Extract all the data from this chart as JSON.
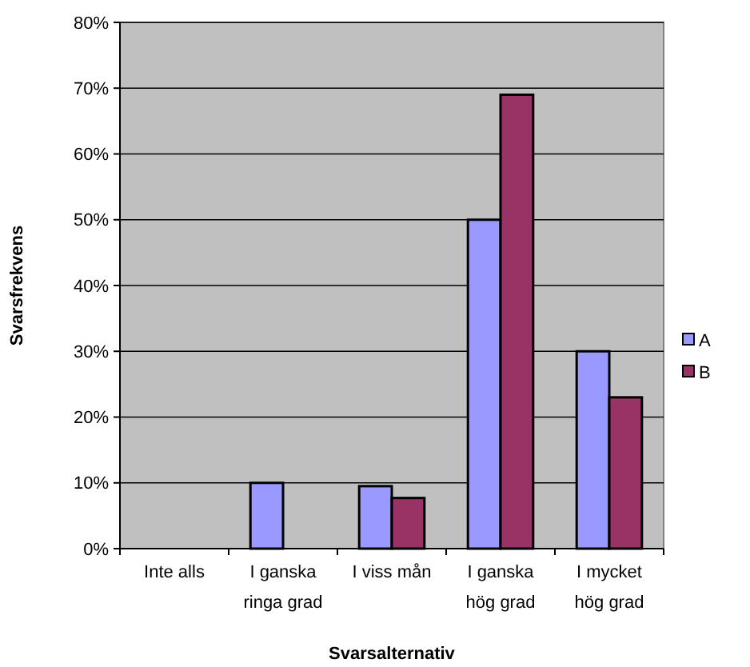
{
  "chart_data": {
    "type": "bar",
    "xlabel": "Svarsalternativ",
    "ylabel": "Svarsfrekvens",
    "categories": [
      "Inte alls",
      "I ganska ringa grad",
      "I viss mån",
      "I ganska hög grad",
      "I mycket hög grad"
    ],
    "series": [
      {
        "name": "A",
        "color": "#9999ff",
        "values": [
          0,
          10,
          9.5,
          50,
          30
        ]
      },
      {
        "name": "B",
        "color": "#993366",
        "values": [
          0,
          0,
          7.7,
          69,
          23
        ]
      }
    ],
    "ylim": [
      0,
      80
    ],
    "yticks": [
      {
        "value": 0,
        "label": "0%"
      },
      {
        "value": 10,
        "label": "10%"
      },
      {
        "value": 20,
        "label": "20%"
      },
      {
        "value": 30,
        "label": "30%"
      },
      {
        "value": 40,
        "label": "40%"
      },
      {
        "value": 50,
        "label": "50%"
      },
      {
        "value": 60,
        "label": "60%"
      },
      {
        "value": 70,
        "label": "70%"
      },
      {
        "value": 80,
        "label": "80%"
      }
    ],
    "grid": "y",
    "legend": "right"
  }
}
